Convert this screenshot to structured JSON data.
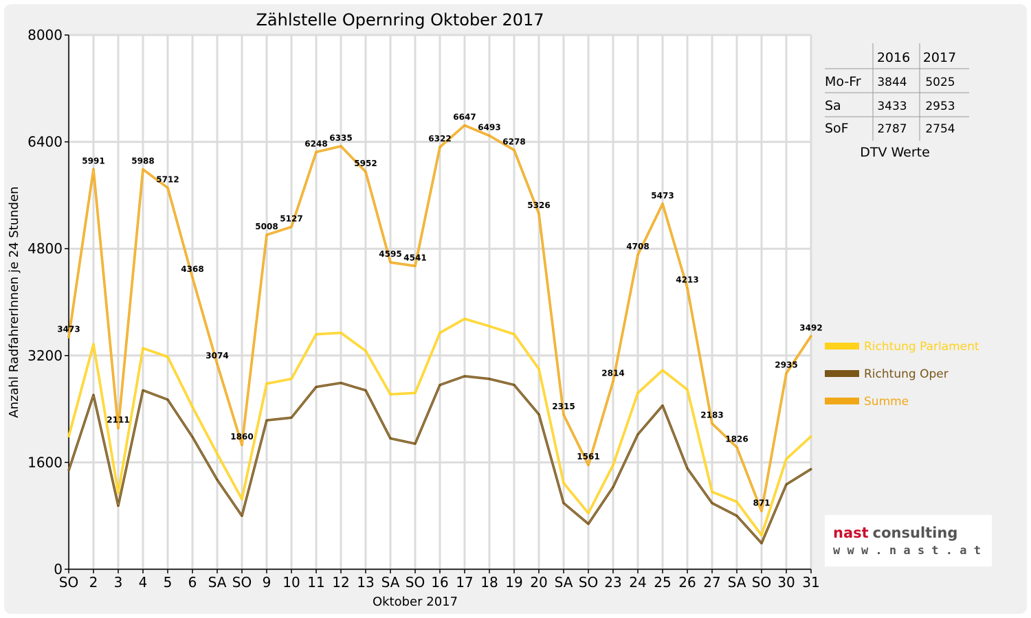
{
  "chart_data": {
    "type": "line",
    "title": "Zählstelle Opernring Oktober 2017",
    "xlabel": "Oktober 2017",
    "ylabel": "Anzahl RadfahrerInnen je 24 Stunden",
    "ylim": [
      0,
      8000
    ],
    "yticks": [
      0,
      1600,
      3200,
      4800,
      6400,
      8000
    ],
    "grid": true,
    "legend_position": "right",
    "categories": [
      "SO",
      "2",
      "3",
      "4",
      "5",
      "6",
      "SA",
      "SO",
      "9",
      "10",
      "11",
      "12",
      "13",
      "SA",
      "SO",
      "16",
      "17",
      "18",
      "19",
      "20",
      "SA",
      "SO",
      "23",
      "24",
      "25",
      "26",
      "27",
      "SA",
      "SO",
      "30",
      "31"
    ],
    "category_colors": [
      "#e00000",
      "#000000",
      "#000000",
      "#000000",
      "#000000",
      "#000000",
      "#000000",
      "#e00000",
      "#000000",
      "#000000",
      "#000000",
      "#000000",
      "#000000",
      "#000000",
      "#e00000",
      "#000000",
      "#000000",
      "#000000",
      "#000000",
      "#000000",
      "#000000",
      "#e00000",
      "#000000",
      "#000000",
      "#000000",
      "#e00000",
      "#000000",
      "#000000",
      "#e00000",
      "#000000",
      "#000000"
    ],
    "series": [
      {
        "name": "Richtung Parlament",
        "color": "#ffd21c",
        "show_labels": false,
        "values": [
          1990,
          3370,
          1140,
          3310,
          3180,
          2430,
          1730,
          1050,
          2780,
          2850,
          3520,
          3540,
          3270,
          2620,
          2640,
          3540,
          3750,
          3640,
          3520,
          3000,
          1290,
          840,
          1560,
          2640,
          2980,
          2690,
          1160,
          1010,
          510,
          1650,
          1990
        ]
      },
      {
        "name": "Richtung Oper",
        "color": "#7a5618",
        "show_labels": false,
        "values": [
          1480,
          2610,
          950,
          2680,
          2540,
          1980,
          1340,
          800,
          2230,
          2270,
          2730,
          2790,
          2680,
          1960,
          1880,
          2760,
          2890,
          2850,
          2760,
          2320,
          990,
          680,
          1230,
          2020,
          2450,
          1510,
          990,
          800,
          390,
          1270,
          1500
        ]
      },
      {
        "name": "Summe",
        "color": "#f0a818",
        "show_labels": true,
        "values": [
          3473,
          5991,
          2111,
          5988,
          5712,
          4368,
          3074,
          1860,
          5008,
          5127,
          6248,
          6335,
          5952,
          4595,
          4541,
          6322,
          6647,
          6493,
          6278,
          5326,
          2315,
          1561,
          2814,
          4708,
          5473,
          4213,
          2183,
          1826,
          871,
          2935,
          3492
        ]
      }
    ]
  },
  "dtv_table": {
    "headers": [
      "2016",
      "2017"
    ],
    "rows": [
      {
        "label": "Mo-Fr",
        "v2016": "3844",
        "v2017": "5025"
      },
      {
        "label": "Sa",
        "v2016": "3433",
        "v2017": "2953"
      },
      {
        "label": "SoF",
        "v2016": "2787",
        "v2017": "2754"
      }
    ],
    "caption": "DTV Werte"
  },
  "logo": {
    "brand_left": "nast",
    "brand_right": "consulting",
    "url": "w w w . n a s t . a t",
    "brand_left_color": "#c8102e",
    "brand_right_color": "#555555"
  }
}
